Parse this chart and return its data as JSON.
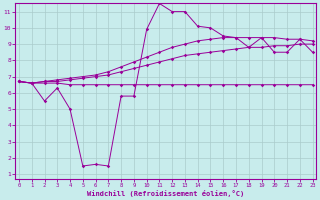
{
  "xlabel": "Windchill (Refroidissement éolien,°C)",
  "bg_color": "#c8ecec",
  "line_color": "#990099",
  "grid_color": "#aacccc",
  "x_ticks": [
    0,
    1,
    2,
    3,
    4,
    5,
    6,
    7,
    8,
    9,
    10,
    11,
    12,
    13,
    14,
    15,
    16,
    17,
    18,
    19,
    20,
    21,
    22,
    23
  ],
  "y_ticks": [
    1,
    2,
    3,
    4,
    5,
    6,
    7,
    8,
    9,
    10,
    11
  ],
  "ylim": [
    0.7,
    11.5
  ],
  "xlim": [
    -0.3,
    23.3
  ],
  "line1_y": [
    6.7,
    6.6,
    6.6,
    6.6,
    6.5,
    6.5,
    6.5,
    6.5,
    6.5,
    6.5,
    6.5,
    6.5,
    6.5,
    6.5,
    6.5,
    6.5,
    6.5,
    6.5,
    6.5,
    6.5,
    6.5,
    6.5,
    6.5,
    6.5
  ],
  "line2_y": [
    6.7,
    6.6,
    6.7,
    6.7,
    6.8,
    6.9,
    7.0,
    7.1,
    7.3,
    7.5,
    7.7,
    7.9,
    8.1,
    8.3,
    8.4,
    8.5,
    8.6,
    8.7,
    8.8,
    8.8,
    8.9,
    8.9,
    9.0,
    9.0
  ],
  "line3_y": [
    6.7,
    6.6,
    6.7,
    6.8,
    6.9,
    7.0,
    7.1,
    7.3,
    7.6,
    7.9,
    8.2,
    8.5,
    8.8,
    9.0,
    9.2,
    9.3,
    9.4,
    9.4,
    9.4,
    9.4,
    9.4,
    9.3,
    9.3,
    9.2
  ],
  "line4_y": [
    6.7,
    6.6,
    5.5,
    6.3,
    5.0,
    1.5,
    1.6,
    1.5,
    5.8,
    5.8,
    9.9,
    11.5,
    11.0,
    11.0,
    10.1,
    10.0,
    9.5,
    9.4,
    8.8,
    9.4,
    8.5,
    8.5,
    9.3,
    8.5
  ]
}
